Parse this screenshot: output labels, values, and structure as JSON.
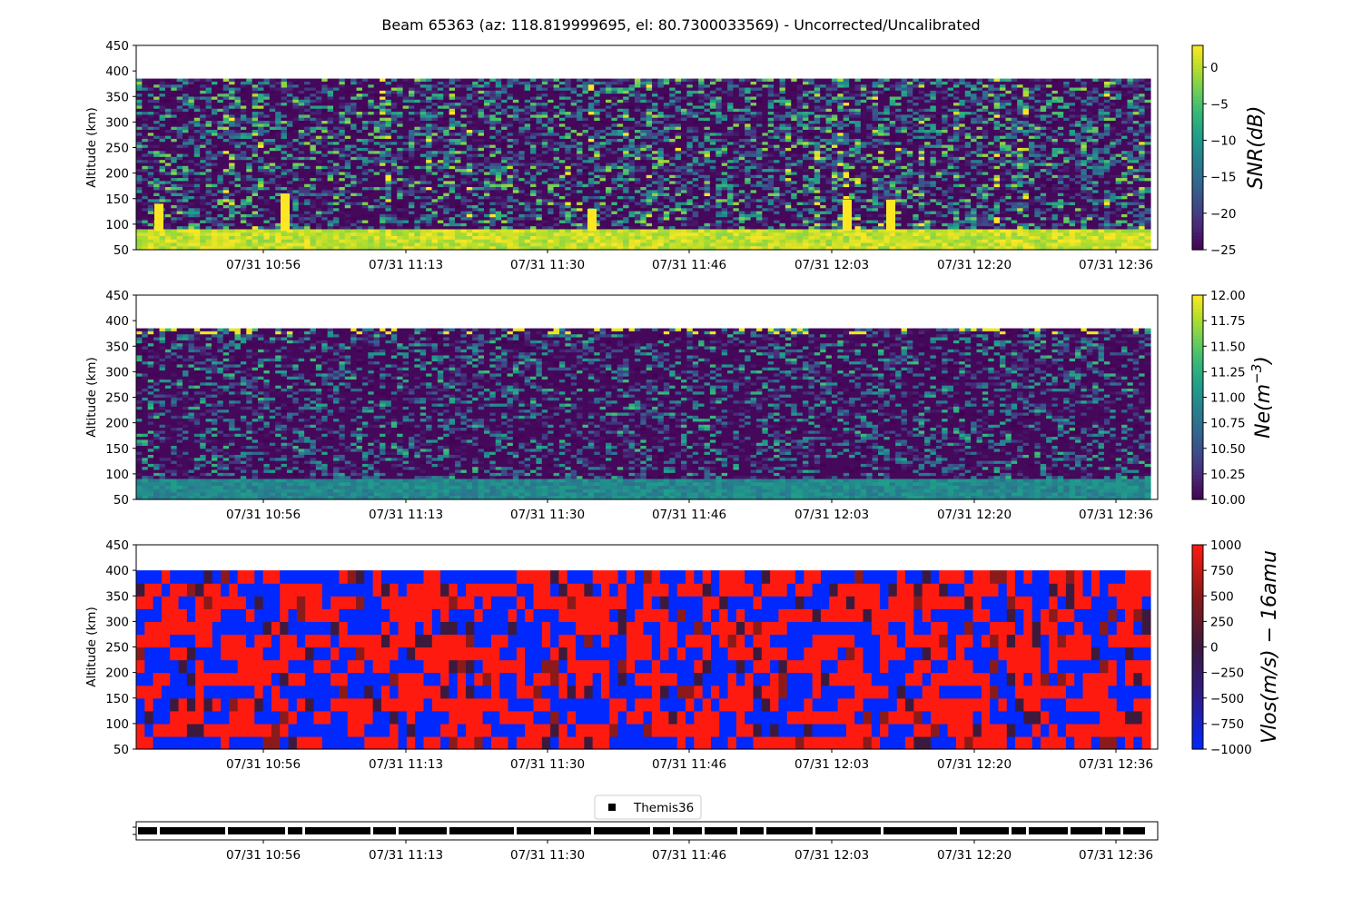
{
  "title": "Beam 65363 (az: 118.819999695, el: 80.7300033569) - Uncorrected/Uncalibrated",
  "colors": {
    "viridis": [
      "#440154",
      "#482878",
      "#3e4a89",
      "#31688e",
      "#26828e",
      "#1f9e89",
      "#35b779",
      "#6ece58",
      "#b5de2b",
      "#fde725"
    ],
    "bwr": [
      "#0028ff",
      "#2d1d8c",
      "#3d1a3d",
      "#8c1a1a",
      "#ff1a10"
    ],
    "timeline_bar": "#000000"
  },
  "chart_data": [
    {
      "name": "snr-panel",
      "type": "heatmap",
      "ylabel": "Altitude (km)",
      "ylim": [
        50,
        450
      ],
      "yticks": [
        50,
        100,
        150,
        200,
        250,
        300,
        350,
        400,
        450
      ],
      "xticks": [
        "07/31 10:56",
        "07/31 11:13",
        "07/31 11:30",
        "07/31 11:46",
        "07/31 12:03",
        "07/31 12:20",
        "07/31 12:36"
      ],
      "colorbar": {
        "label": "SNR(dB)",
        "min": -25,
        "max": 3,
        "ticks": [
          0,
          -5,
          -10,
          -15,
          -20,
          -25
        ],
        "colormap": "viridis"
      },
      "data_altitude_range": [
        50,
        385
      ],
      "features": {
        "low_altitude_band_km": [
          50,
          90
        ],
        "low_altitude_band_snr_db": 3,
        "background_snr_db": [
          -25,
          -5
        ],
        "spikes": [
          {
            "time": "07/31 10:40",
            "top_km": 140
          },
          {
            "time": "07/31 10:59",
            "top_km": 160
          },
          {
            "time": "07/31 11:35",
            "top_km": 130
          },
          {
            "time": "07/31 12:05",
            "top_km": 148
          },
          {
            "time": "07/31 12:10",
            "top_km": 148
          }
        ]
      }
    },
    {
      "name": "ne-panel",
      "type": "heatmap",
      "ylabel": "Altitude (km)",
      "ylim": [
        50,
        450
      ],
      "yticks": [
        50,
        100,
        150,
        200,
        250,
        300,
        350,
        400,
        450
      ],
      "xticks": [
        "07/31 10:56",
        "07/31 11:13",
        "07/31 11:30",
        "07/31 11:46",
        "07/31 12:03",
        "07/31 12:20",
        "07/31 12:36"
      ],
      "colorbar": {
        "label": "Ne(m^-3)",
        "min": 10.0,
        "max": 12.0,
        "ticks": [
          "12.00",
          "11.75",
          "11.50",
          "11.25",
          "11.00",
          "10.75",
          "10.50",
          "10.25",
          "10.00"
        ],
        "colormap": "viridis"
      },
      "data_altitude_range": [
        50,
        385
      ],
      "features": {
        "low_altitude_band_km": [
          50,
          90
        ],
        "low_altitude_band_value": 10.9,
        "background_value": [
          10.0,
          11.0
        ]
      }
    },
    {
      "name": "vlos-panel",
      "type": "heatmap",
      "ylabel": "Altitude (km)",
      "ylim": [
        50,
        450
      ],
      "yticks": [
        50,
        100,
        150,
        200,
        250,
        300,
        350,
        400,
        450
      ],
      "xticks": [
        "07/31 10:56",
        "07/31 11:13",
        "07/31 11:30",
        "07/31 11:46",
        "07/31 12:03",
        "07/31 12:20",
        "07/31 12:36"
      ],
      "colorbar": {
        "label": "Vlos(m/s) − 16amu",
        "min": -1000,
        "max": 1000,
        "ticks": [
          1000,
          750,
          500,
          250,
          0,
          -250,
          -500,
          -750,
          -1000
        ],
        "colormap": "bwr"
      },
      "data_altitude_range": [
        50,
        400
      ],
      "altitude_bin_km": 25,
      "features": {
        "values_m_s": [
          -1000,
          1000
        ],
        "mostly_saturated": true
      }
    },
    {
      "name": "mode-timeline",
      "type": "timeline",
      "xticks": [
        "07/31 10:56",
        "07/31 11:13",
        "07/31 11:30",
        "07/31 11:46",
        "07/31 12:03",
        "07/31 12:20",
        "07/31 12:36"
      ],
      "legend": [
        {
          "label": "Themis36",
          "marker": "square",
          "color": "#000000"
        }
      ],
      "legend_placement": "above-center"
    }
  ]
}
